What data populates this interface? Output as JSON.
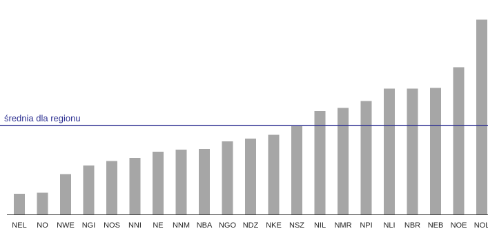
{
  "chart_data": {
    "type": "bar",
    "categories": [
      "NEL",
      "NO",
      "NWE",
      "NGI",
      "NOS",
      "NNI",
      "NE",
      "NNM",
      "NBA",
      "NGO",
      "NDZ",
      "NKE",
      "NSZ",
      "NIL",
      "NMR",
      "NPI",
      "NLI",
      "NBR",
      "NEB",
      "NOE",
      "NOL"
    ],
    "values": [
      11,
      11.5,
      21.5,
      26,
      28.5,
      30,
      33.3,
      34.5,
      34.8,
      38.8,
      40.3,
      42.3,
      47,
      55,
      56.6,
      60.3,
      67,
      67,
      67.3,
      78.3,
      103.5
    ],
    "reference_line": {
      "label": "średnia dla regionu",
      "value": 47.3
    },
    "ylim": [
      0,
      110
    ],
    "grid": false,
    "bar_color": "#a6a6a6",
    "reference_color": "#2e3192",
    "baseline_color": "#333333"
  }
}
